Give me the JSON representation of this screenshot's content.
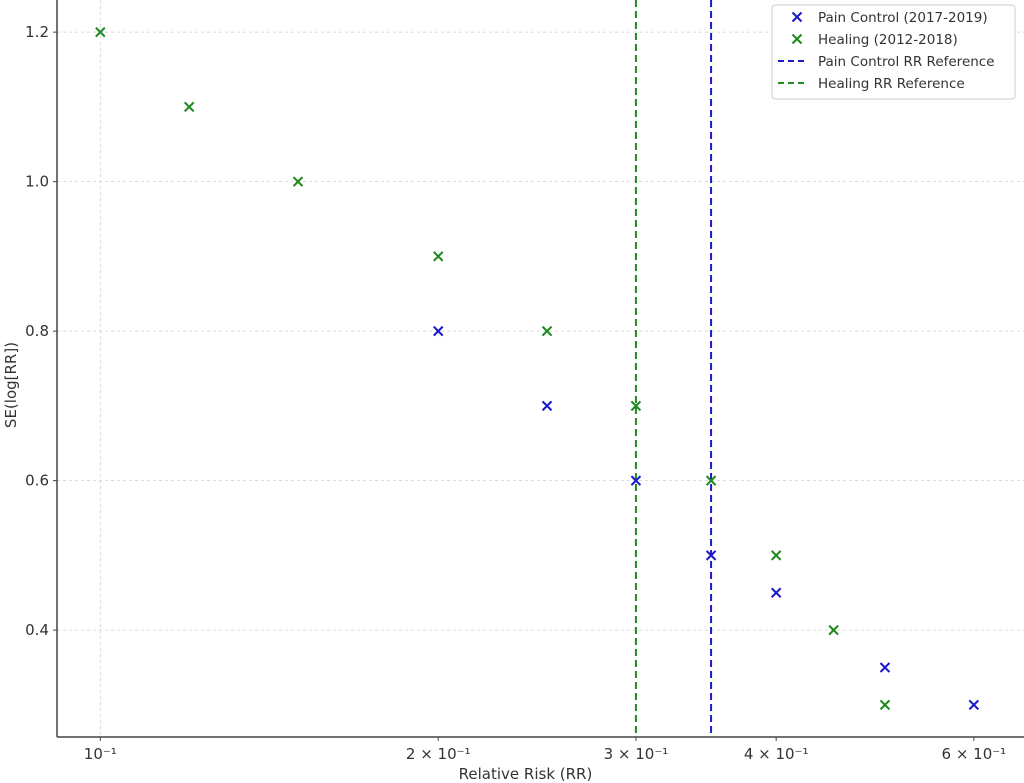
{
  "chart_data": {
    "type": "scatter",
    "title": "",
    "xlabel": "Relative Risk (RR)",
    "ylabel": "SE(log[RR])",
    "xscale": "log",
    "xlim": [
      0.0915,
      0.665
    ],
    "ylim": [
      0.257,
      1.243
    ],
    "grid": true,
    "legend_position": "top-right",
    "x_ticks": [
      {
        "value": 0.1,
        "label": "10⁻¹"
      },
      {
        "value": 0.2,
        "label": "2 × 10⁻¹"
      },
      {
        "value": 0.3,
        "label": "3 × 10⁻¹"
      },
      {
        "value": 0.4,
        "label": "4 × 10⁻¹"
      },
      {
        "value": 0.6,
        "label": "6 × 10⁻¹"
      }
    ],
    "y_ticks": [
      {
        "value": 0.4,
        "label": "0.4"
      },
      {
        "value": 0.6,
        "label": "0.6"
      },
      {
        "value": 0.8,
        "label": "0.8"
      },
      {
        "value": 1.0,
        "label": "1.0"
      },
      {
        "value": 1.2,
        "label": "1.2"
      }
    ],
    "series": [
      {
        "name": "Pain Control (2017-2019)",
        "color": "#1a1ac8",
        "marker": "x",
        "x": [
          0.2,
          0.25,
          0.3,
          0.35,
          0.4,
          0.5,
          0.6
        ],
        "y": [
          0.8,
          0.7,
          0.6,
          0.5,
          0.45,
          0.35,
          0.3
        ]
      },
      {
        "name": "Healing (2012-2018)",
        "color": "#1f8a1f",
        "marker": "x",
        "x": [
          0.1,
          0.12,
          0.15,
          0.2,
          0.25,
          0.3,
          0.35,
          0.4,
          0.45,
          0.5
        ],
        "y": [
          1.2,
          1.1,
          1.0,
          0.9,
          0.8,
          0.7,
          0.6,
          0.5,
          0.4,
          0.3
        ]
      }
    ],
    "reference_lines": [
      {
        "name": "Pain Control RR Reference",
        "x": 0.35,
        "color": "#1a1ac8",
        "style": "dashed"
      },
      {
        "name": "Healing RR Reference",
        "x": 0.3,
        "color": "#1f8a1f",
        "style": "dashed"
      }
    ]
  }
}
